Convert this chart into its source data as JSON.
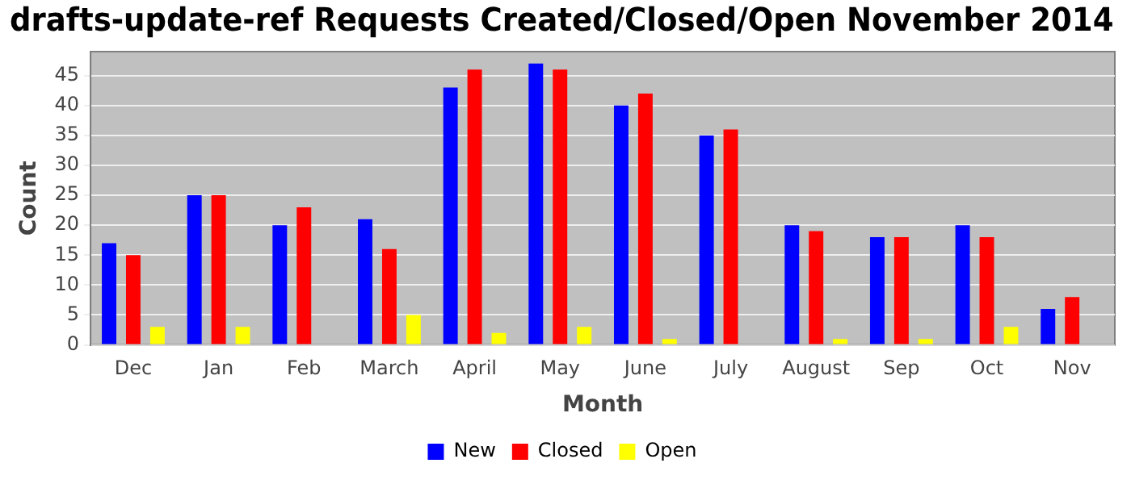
{
  "chart_data": {
    "type": "bar",
    "title": "drafts-update-ref Requests Created/Closed/Open November 2014",
    "xlabel": "Month",
    "ylabel": "Count",
    "categories": [
      "Dec",
      "Jan",
      "Feb",
      "March",
      "April",
      "May",
      "June",
      "July",
      "August",
      "Sep",
      "Oct",
      "Nov"
    ],
    "series": [
      {
        "name": "New",
        "color": "#0000ff",
        "values": [
          17,
          25,
          20,
          21,
          43,
          47,
          40,
          35,
          20,
          18,
          20,
          6
        ]
      },
      {
        "name": "Closed",
        "color": "#ff0000",
        "values": [
          15,
          25,
          23,
          16,
          46,
          46,
          42,
          36,
          19,
          18,
          18,
          8
        ]
      },
      {
        "name": "Open",
        "color": "#ffff00",
        "values": [
          3,
          3,
          0,
          5,
          2,
          3,
          1,
          0,
          1,
          1,
          3,
          0
        ]
      }
    ],
    "ylim": [
      0,
      49
    ],
    "yticks": [
      0,
      5,
      10,
      15,
      20,
      25,
      30,
      35,
      40,
      45
    ],
    "grid": "y",
    "legend": "bottom"
  }
}
